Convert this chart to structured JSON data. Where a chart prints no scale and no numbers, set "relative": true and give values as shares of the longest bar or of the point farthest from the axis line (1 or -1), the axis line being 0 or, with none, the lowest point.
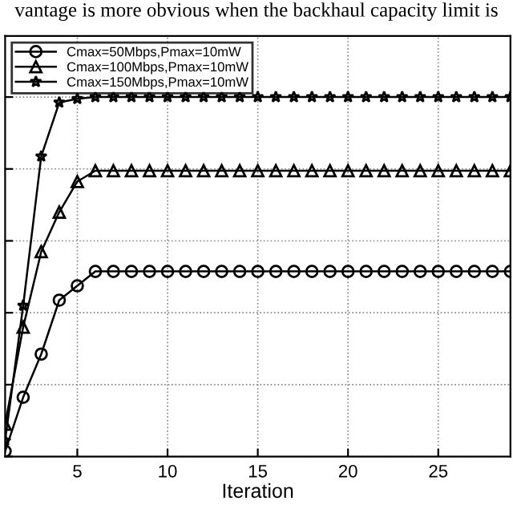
{
  "chart_data": {
    "type": "line",
    "xlabel": "Iteration",
    "relative": true,
    "annotations": [
      "vantage is more obvious when the backhaul capacity limit is"
    ],
    "x": [
      1,
      2,
      3,
      4,
      5,
      6,
      7,
      8,
      9,
      10,
      11,
      12,
      13,
      14,
      15,
      16,
      17,
      18,
      19,
      20,
      21,
      22,
      23,
      24,
      25,
      26,
      27,
      28,
      29
    ],
    "xlim": [
      1,
      29
    ],
    "xticks": [
      5,
      10,
      15,
      20,
      25
    ],
    "series": [
      {
        "name": "Cmax=50Mbps,Pmax=10mW",
        "color": "#000000",
        "marker": "circle",
        "values": [
          0.015,
          0.165,
          0.285,
          0.435,
          0.475,
          0.515,
          0.515,
          0.515,
          0.515,
          0.515,
          0.515,
          0.515,
          0.515,
          0.515,
          0.515,
          0.515,
          0.515,
          0.515,
          0.515,
          0.515,
          0.515,
          0.515,
          0.515,
          0.515,
          0.515,
          0.515,
          0.515,
          0.515,
          0.515
        ]
      },
      {
        "name": "Cmax=100Mbps,Pmax=10mW",
        "color": "#000000",
        "marker": "triangle",
        "values": [
          0.09,
          0.36,
          0.57,
          0.68,
          0.765,
          0.795,
          0.795,
          0.795,
          0.795,
          0.795,
          0.795,
          0.795,
          0.795,
          0.795,
          0.795,
          0.795,
          0.795,
          0.795,
          0.795,
          0.795,
          0.795,
          0.795,
          0.795,
          0.795,
          0.795,
          0.795,
          0.795,
          0.795,
          0.795
        ]
      },
      {
        "name": "Cmax=150Mbps,Pmax=10mW",
        "color": "#000000",
        "marker": "star",
        "values": [
          0.045,
          0.42,
          0.835,
          0.985,
          0.995,
          1,
          1,
          1,
          1,
          1,
          1,
          1,
          1,
          1,
          1,
          1,
          1,
          1,
          1,
          1,
          1,
          1,
          1,
          1,
          1,
          1,
          1,
          1,
          1
        ]
      }
    ],
    "grid": true,
    "legend": "top left",
    "line_style": "solid"
  }
}
